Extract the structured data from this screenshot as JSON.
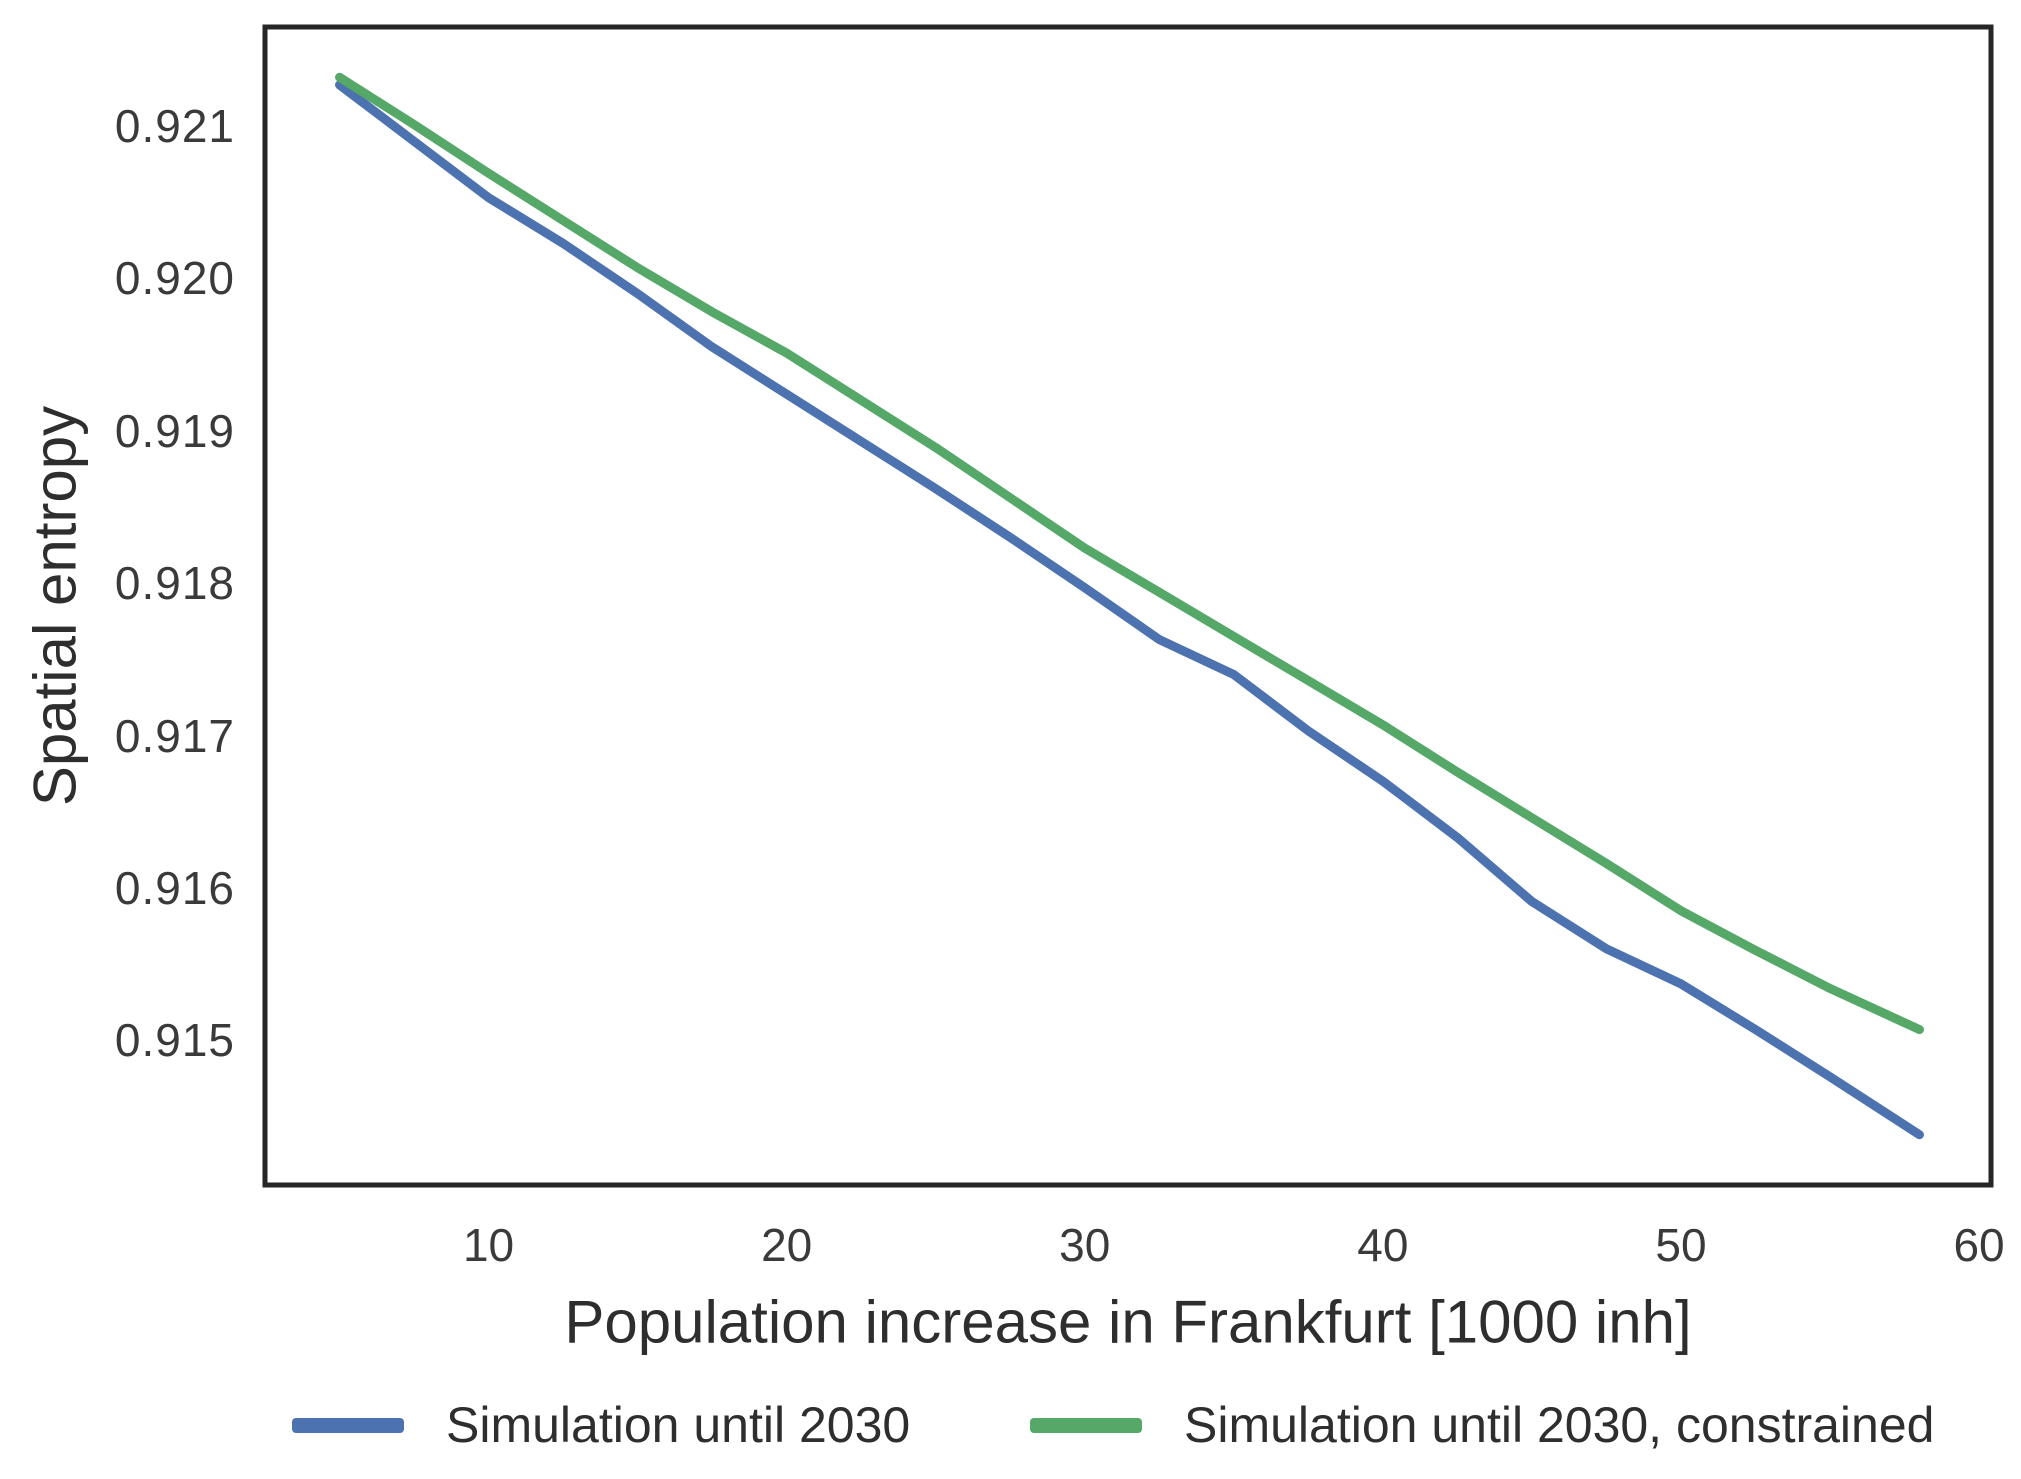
{
  "chart_data": {
    "type": "line",
    "title": "",
    "xlabel": "Population increase in Frankfurt [1000 inh]",
    "ylabel": "Spatial entropy",
    "xlim": [
      2.5,
      60.4
    ],
    "ylim": [
      0.91405,
      0.92165
    ],
    "grid": false,
    "legend_position": "below-chart, horizontal",
    "x_ticks": {
      "values": [
        10,
        20,
        30,
        40,
        50,
        60
      ],
      "labels": [
        "10",
        "20",
        "30",
        "40",
        "50",
        "60"
      ]
    },
    "y_ticks": {
      "values": [
        0.921,
        0.92,
        0.919,
        0.918,
        0.917,
        0.916,
        0.915
      ],
      "labels": [
        "0.921",
        "0.920",
        "0.919",
        "0.918",
        "0.917",
        "0.916",
        "0.915"
      ]
    },
    "x": [
      5,
      7.5,
      10,
      12.5,
      15,
      17.5,
      20,
      22.5,
      25,
      27.5,
      30,
      32.5,
      35,
      37.5,
      40,
      42.5,
      45,
      47.5,
      50,
      52.5,
      55,
      58
    ],
    "series": [
      {
        "name": "Simulation until 2030",
        "color": "#4c72b0",
        "values": [
          0.92127,
          0.9209,
          0.92053,
          0.92023,
          0.9199,
          0.91955,
          0.91924,
          0.91893,
          0.91862,
          0.9183,
          0.91797,
          0.91763,
          0.9174,
          0.91703,
          0.9167,
          0.91633,
          0.91591,
          0.9156,
          0.91537,
          0.91507,
          0.91476,
          0.91438
        ]
      },
      {
        "name": "Simulation until 2030, constrained",
        "color": "#55a868",
        "values": [
          0.92132,
          0.92101,
          0.92069,
          0.92038,
          0.92007,
          0.91978,
          0.91951,
          0.9192,
          0.91889,
          0.91856,
          0.91823,
          0.91794,
          0.91765,
          0.91736,
          0.91707,
          0.91676,
          0.91646,
          0.91616,
          0.91585,
          0.91559,
          0.91534,
          0.91507
        ]
      }
    ],
    "spine_color": "#262626",
    "tick_label_color": "#3a3a3a"
  }
}
